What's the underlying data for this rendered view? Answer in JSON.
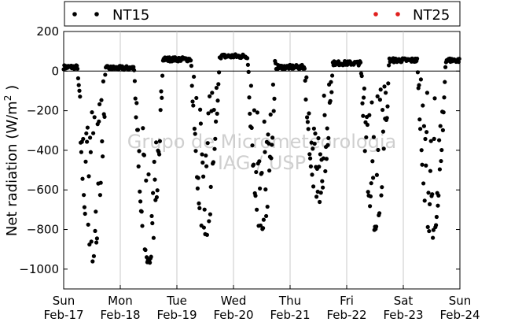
{
  "chart_data": {
    "type": "scatter",
    "title": "",
    "ylabel_main": "Net radiation (W/m",
    "ylabel_sup": "2",
    "ylabel_tail": " )",
    "ylim": [
      -1100,
      200
    ],
    "yticks": [
      200,
      0,
      -200,
      -400,
      -600,
      -800,
      -1000
    ],
    "ytick_labels": [
      "200",
      "0",
      "−200",
      "−400",
      "−600",
      "−800",
      "−1000"
    ],
    "xlim_days": [
      0,
      7
    ],
    "xticks": [
      {
        "day": "Sun",
        "date": "Feb-17"
      },
      {
        "day": "Mon",
        "date": "Feb-18"
      },
      {
        "day": "Tue",
        "date": "Feb-19"
      },
      {
        "day": "Wed",
        "date": "Feb-20"
      },
      {
        "day": "Thu",
        "date": "Feb-21"
      },
      {
        "day": "Fri",
        "date": "Feb-22"
      },
      {
        "day": "Sat",
        "date": "Feb-23"
      },
      {
        "day": "Sun",
        "date": "Feb-24"
      }
    ],
    "grid": "vertical",
    "legend_placement": "top",
    "watermark": [
      "Grupo de Micrometeorologia",
      "IAG / USP"
    ],
    "series": [
      {
        "name": "NT15",
        "color": "#000000",
        "daily_night_level": [
          20,
          15,
          60,
          75,
          20,
          40,
          55
        ],
        "daily_min": [
          -950,
          -960,
          -830,
          -810,
          -660,
          -790,
          -850
        ],
        "daily_min_time": [
          0.45,
          0.33,
          0.48,
          0.45,
          0.48,
          0.52,
          0.45
        ]
      },
      {
        "name": "NT25",
        "color": "#e0201e"
      }
    ]
  }
}
